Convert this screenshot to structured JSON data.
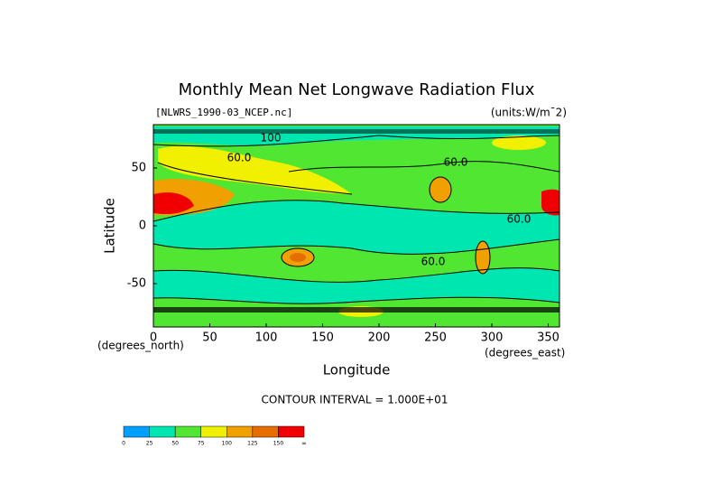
{
  "chart_data": {
    "type": "contour",
    "title": "Monthly Mean Net Longwave Radiation Flux",
    "file_label": "[NLWRS_1990-03_NCEP.nc]",
    "units_label": "(units:W/m¯2)",
    "x_label": "Longitude",
    "y_label": "Latitude",
    "x_unit_label": "(degrees_east)",
    "y_unit_label": "(degrees_north)",
    "xlim": [
      0,
      360
    ],
    "ylim": [
      -87.5,
      87.5
    ],
    "xticks": [
      0,
      50,
      100,
      150,
      200,
      250,
      300,
      350
    ],
    "yticks": [
      -50,
      0,
      50
    ],
    "annotation": "CONTOUR INTERVAL = 1.000E+01",
    "contour_labels": [
      {
        "value": 60,
        "label": "60.0"
      },
      {
        "value": 60,
        "label": "60.0"
      },
      {
        "value": 60,
        "label": "60.0"
      },
      {
        "value": 60,
        "label": "60.0"
      },
      {
        "value": 100,
        "label": "100"
      }
    ],
    "colorbar": {
      "levels": [
        0,
        25,
        50,
        75,
        100,
        125,
        150
      ],
      "top_label": "∞",
      "colors": [
        "#00a0ff",
        "#00e6b0",
        "#50e632",
        "#f0f000",
        "#f0a000",
        "#e66e00",
        "#f00000"
      ]
    }
  }
}
